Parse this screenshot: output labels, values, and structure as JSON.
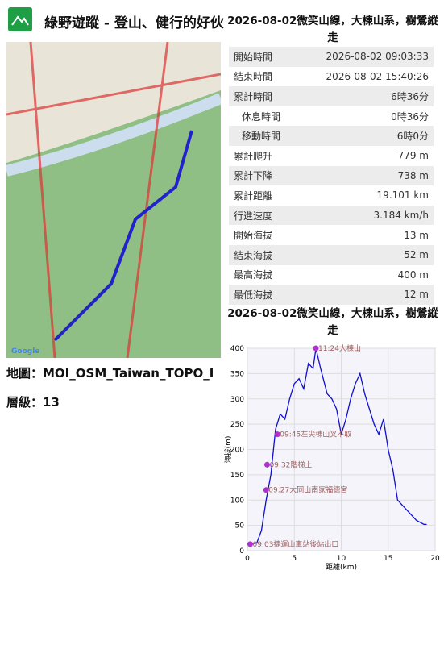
{
  "header": {
    "title": "綠野遊蹤 - 登山、健行的好伙"
  },
  "map": {
    "provider": "Google",
    "map_label": "地圖：MOI_OSM_Taiwan_TOPO_I",
    "zoom_label": "層級：13"
  },
  "stats": {
    "title": "2026-08-02微笑山線，大棟山系，樹鶯縱走",
    "rows": [
      [
        "開始時間",
        "2026-08-02 09:03:33"
      ],
      [
        "結束時間",
        "2026-08-02 15:40:26"
      ],
      [
        "累計時間",
        "6時36分"
      ],
      [
        "休息時間",
        "0時36分"
      ],
      [
        "移動時間",
        "6時0分"
      ],
      [
        "累計爬升",
        "779 m"
      ],
      [
        "累計下降",
        "738 m"
      ],
      [
        "累計距離",
        "19.101 km"
      ],
      [
        "行進速度",
        "3.184 km/h"
      ],
      [
        "開始海拔",
        "13 m"
      ],
      [
        "結束海拔",
        "52 m"
      ],
      [
        "最高海拔",
        "400 m"
      ],
      [
        "最低海拔",
        "12 m"
      ]
    ]
  },
  "chart_data": {
    "type": "line",
    "title": "2026-08-02微笑山線，大棟山系，樹鶯縱走",
    "x_label": "距離(km)",
    "y_label": "海拔(m)",
    "xlim": [
      0,
      20
    ],
    "xticks": [
      0,
      5,
      10,
      15,
      20
    ],
    "ylim": [
      0,
      400
    ],
    "yticks": [
      0,
      50,
      100,
      150,
      200,
      250,
      300,
      350,
      400
    ],
    "x": [
      0,
      1,
      1.5,
      2,
      2.5,
      3,
      3.5,
      4,
      4.5,
      5,
      5.5,
      6,
      6.5,
      7,
      7.3,
      7.8,
      8.5,
      9,
      9.5,
      10,
      10.5,
      11,
      11.5,
      12,
      12.5,
      13,
      13.5,
      14,
      14.5,
      15,
      15.5,
      16,
      17,
      18,
      18.8,
      19.1
    ],
    "series": [
      {
        "name": "海拔",
        "color": "#1010d0",
        "values": [
          13,
          15,
          40,
          100,
          150,
          240,
          270,
          260,
          300,
          330,
          340,
          320,
          370,
          360,
          400,
          360,
          310,
          300,
          280,
          230,
          260,
          300,
          330,
          350,
          310,
          280,
          250,
          230,
          260,
          200,
          160,
          100,
          80,
          60,
          52,
          52
        ]
      }
    ],
    "waypoints": {
      "color": "#b030d0",
      "x": [
        0.3,
        2,
        2.1,
        3.2,
        7.3
      ],
      "y": [
        13,
        120,
        170,
        230,
        400
      ],
      "labels": [
        "09:03捷運山車站後站出口",
        "09:27大同山南家福德宮",
        "09:32階梯上",
        "09:45左尖棟山叉不取",
        "11:24大棟山"
      ]
    }
  }
}
